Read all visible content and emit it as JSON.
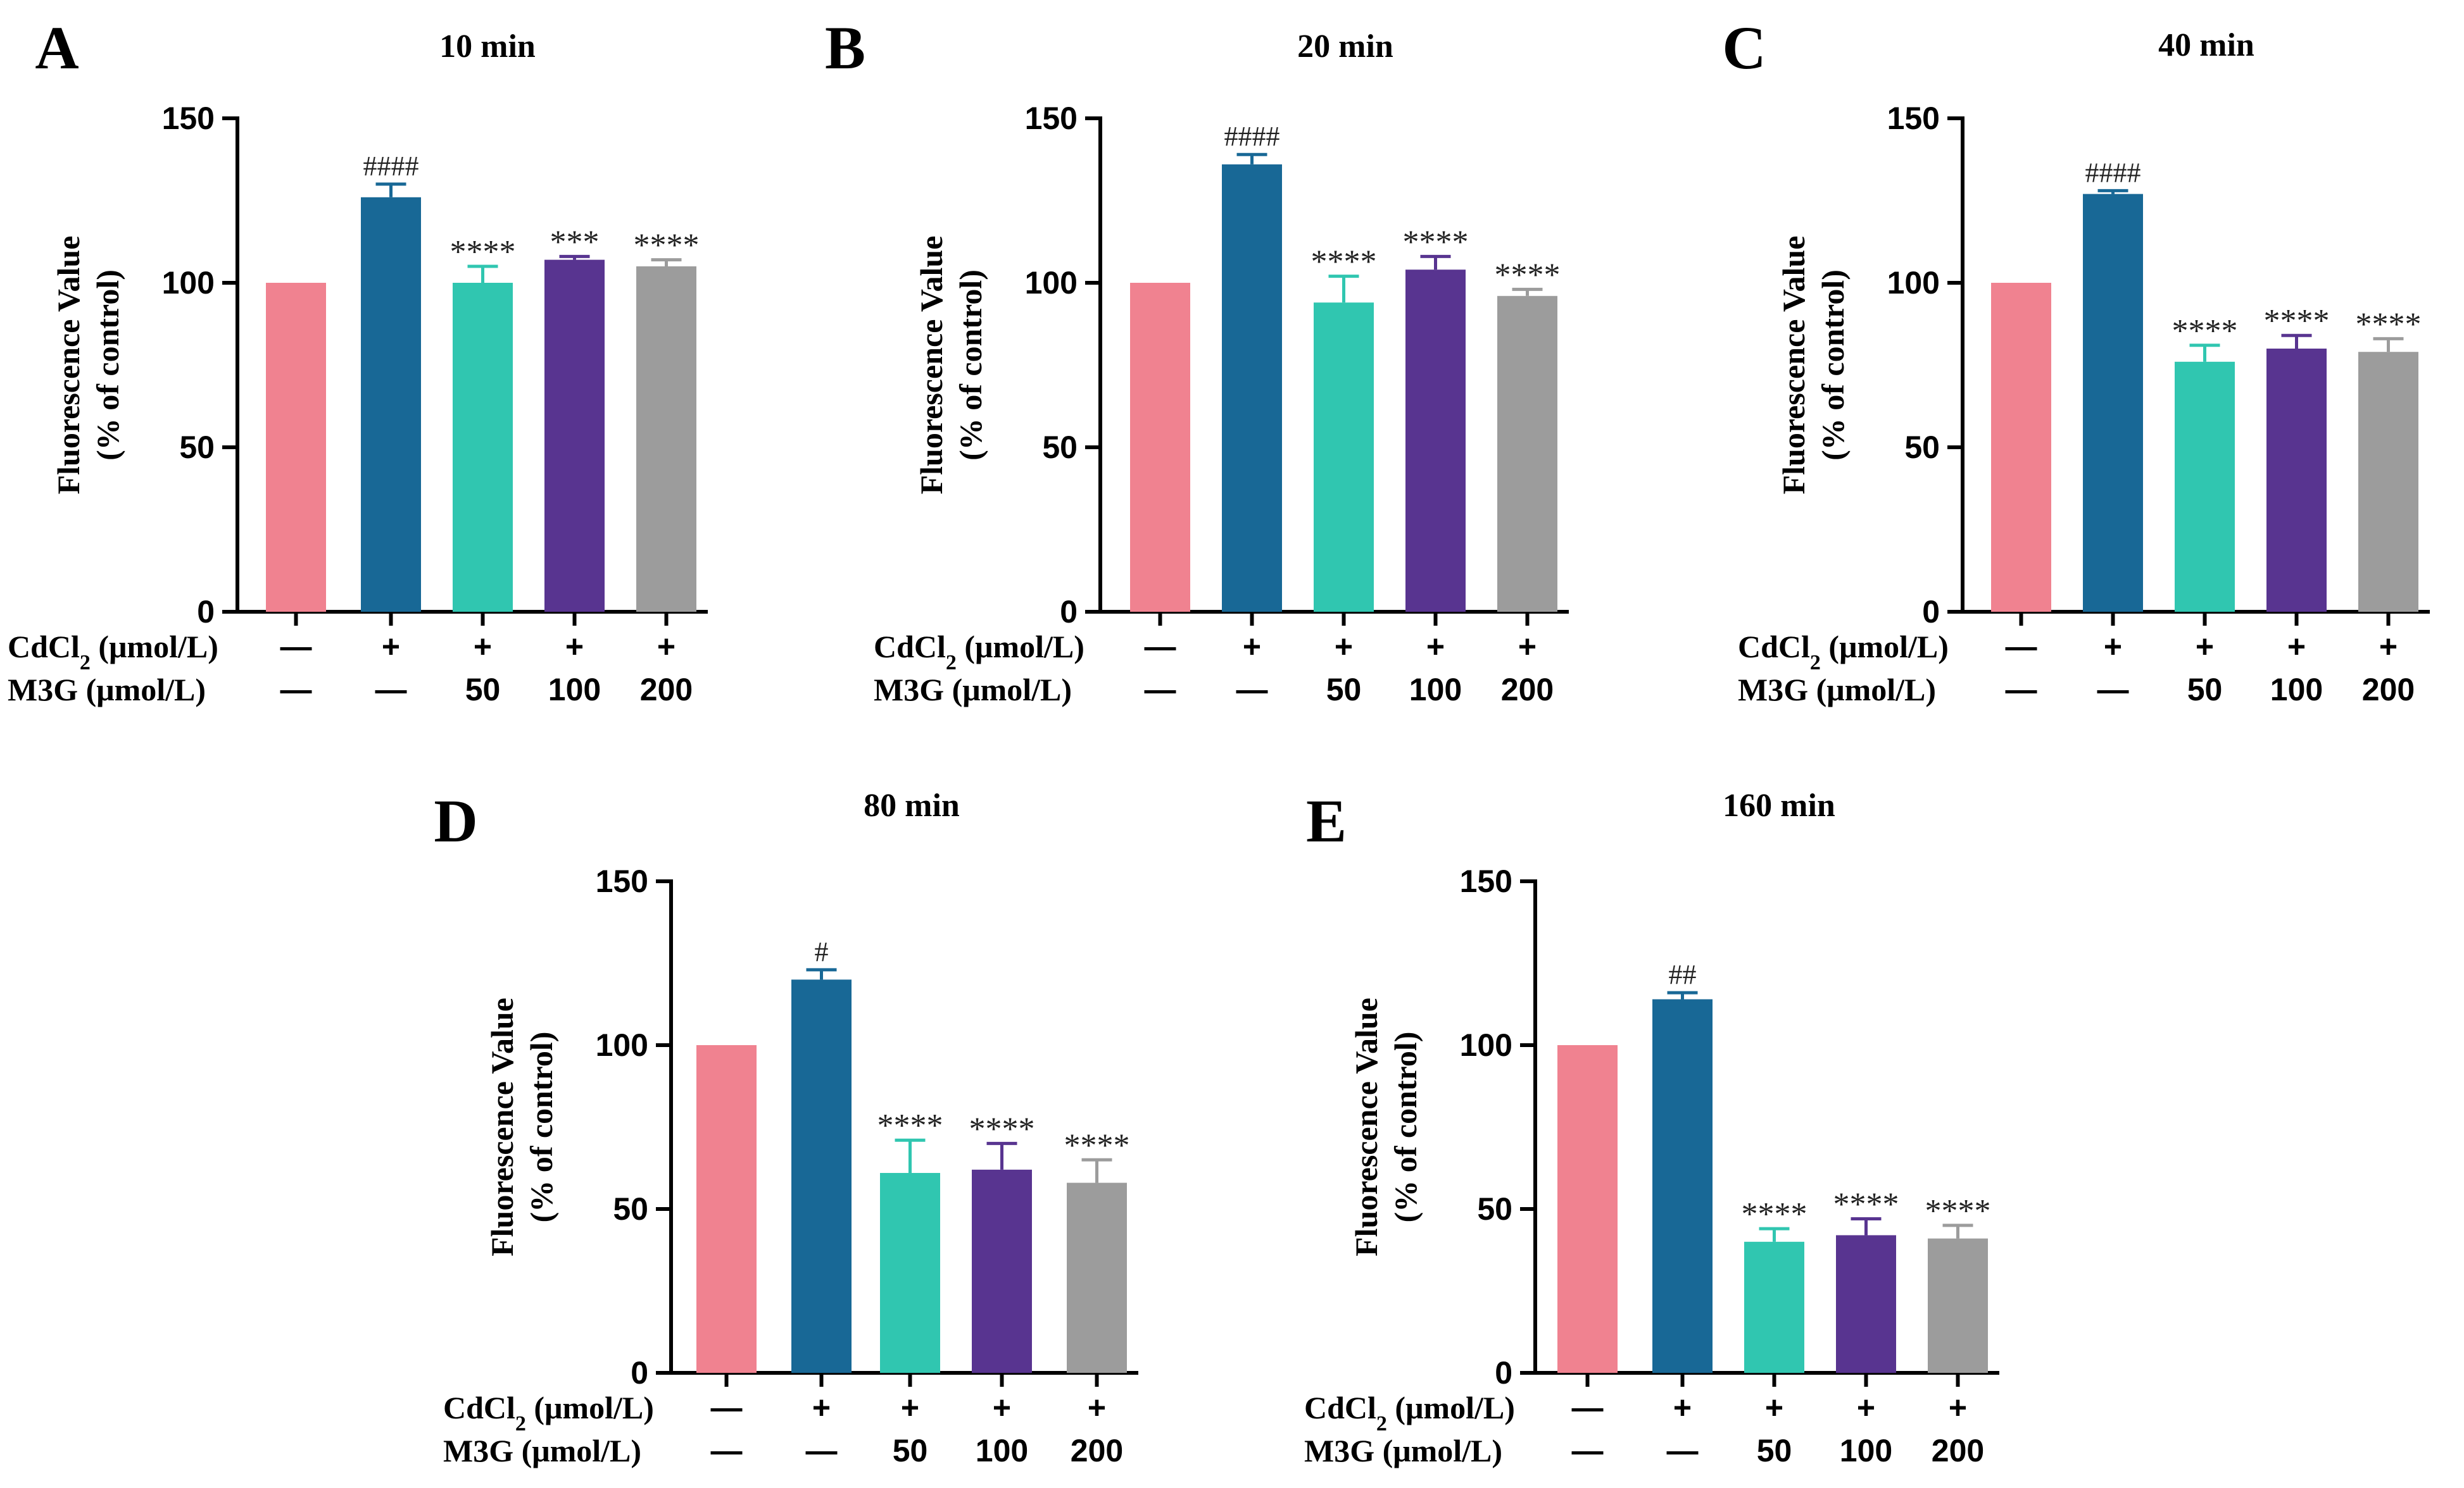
{
  "chart_data": [
    {
      "panel": "A",
      "title": "10 min",
      "type": "bar",
      "ylabel": [
        "Fluorescence Value",
        "(% of control)"
      ],
      "ylim": [
        0,
        150
      ],
      "yticks": [
        "0",
        "50",
        "100",
        "150"
      ],
      "categories": [
        "Control",
        "CdCl2",
        "CdCl2 + M3G 50",
        "CdCl2 + M3G 100",
        "CdCl2 + M3G 200"
      ],
      "values": [
        100,
        126,
        100,
        107,
        105
      ],
      "errors": [
        0,
        4,
        5,
        1,
        2
      ],
      "significance": [
        "",
        "####",
        "****",
        "***",
        "****"
      ],
      "colors": [
        "#F08290",
        "#186896",
        "#30C6B0",
        "#583490",
        "#9C9C9C"
      ],
      "row_labels": {
        "cdcl2": [
          "CdCl",
          "2",
          " (μmol/L)"
        ],
        "m3g": "M3G (μmol/L)"
      },
      "cdcl2_row": [
        "—",
        "+",
        "+",
        "+",
        "+"
      ],
      "m3g_row": [
        "—",
        "—",
        "50",
        "100",
        "200"
      ]
    },
    {
      "panel": "B",
      "title": "20 min",
      "type": "bar",
      "ylabel": [
        "Fluorescence Value",
        "(% of control)"
      ],
      "ylim": [
        0,
        150
      ],
      "yticks": [
        "0",
        "50",
        "100",
        "150"
      ],
      "categories": [
        "Control",
        "CdCl2",
        "CdCl2 + M3G 50",
        "CdCl2 + M3G 100",
        "CdCl2 + M3G 200"
      ],
      "values": [
        100,
        136,
        94,
        104,
        96
      ],
      "errors": [
        0,
        3,
        8,
        4,
        2
      ],
      "significance": [
        "",
        "####",
        "****",
        "****",
        "****"
      ],
      "colors": [
        "#F08290",
        "#186896",
        "#30C6B0",
        "#583490",
        "#9C9C9C"
      ],
      "row_labels": {
        "cdcl2": [
          "CdCl",
          "2",
          " (μmol/L)"
        ],
        "m3g": "M3G (μmol/L)"
      },
      "cdcl2_row": [
        "—",
        "+",
        "+",
        "+",
        "+"
      ],
      "m3g_row": [
        "—",
        "—",
        "50",
        "100",
        "200"
      ]
    },
    {
      "panel": "C",
      "title": "40 min",
      "type": "bar",
      "ylabel": [
        "Fluorescence Value",
        "(% of control)"
      ],
      "ylim": [
        0,
        150
      ],
      "yticks": [
        "0",
        "50",
        "100",
        "150"
      ],
      "categories": [
        "Control",
        "CdCl2",
        "CdCl2 + M3G 50",
        "CdCl2 + M3G 100",
        "CdCl2 + M3G 200"
      ],
      "values": [
        100,
        127,
        76,
        80,
        79
      ],
      "errors": [
        0,
        1,
        5,
        4,
        4
      ],
      "significance": [
        "",
        "####",
        "****",
        "****",
        "****"
      ],
      "colors": [
        "#F08290",
        "#186896",
        "#30C6B0",
        "#583490",
        "#9C9C9C"
      ],
      "row_labels": {
        "cdcl2": [
          "CdCl",
          "2",
          " (μmol/L)"
        ],
        "m3g": "M3G (μmol/L)"
      },
      "cdcl2_row": [
        "—",
        "+",
        "+",
        "+",
        "+"
      ],
      "m3g_row": [
        "—",
        "—",
        "50",
        "100",
        "200"
      ]
    },
    {
      "panel": "D",
      "title": "80 min",
      "type": "bar",
      "ylabel": [
        "Fluorescence Value",
        "(% of control)"
      ],
      "ylim": [
        0,
        150
      ],
      "yticks": [
        "0",
        "50",
        "100",
        "150"
      ],
      "categories": [
        "Control",
        "CdCl2",
        "CdCl2 + M3G 50",
        "CdCl2 + M3G 100",
        "CdCl2 + M3G 200"
      ],
      "values": [
        100,
        120,
        61,
        62,
        58
      ],
      "errors": [
        0,
        3,
        10,
        8,
        7
      ],
      "significance": [
        "",
        "#",
        "****",
        "****",
        "****"
      ],
      "colors": [
        "#F08290",
        "#186896",
        "#30C6B0",
        "#583490",
        "#9C9C9C"
      ],
      "row_labels": {
        "cdcl2": [
          "CdCl",
          "2",
          " (μmol/L)"
        ],
        "m3g": "M3G (μmol/L)"
      },
      "cdcl2_row": [
        "—",
        "+",
        "+",
        "+",
        "+"
      ],
      "m3g_row": [
        "—",
        "—",
        "50",
        "100",
        "200"
      ]
    },
    {
      "panel": "E",
      "title": "160 min",
      "type": "bar",
      "ylabel": [
        "Fluorescence Value",
        "(% of control)"
      ],
      "ylim": [
        0,
        150
      ],
      "yticks": [
        "0",
        "50",
        "100",
        "150"
      ],
      "categories": [
        "Control",
        "CdCl2",
        "CdCl2 + M3G 50",
        "CdCl2 + M3G 100",
        "CdCl2 + M3G 200"
      ],
      "values": [
        100,
        114,
        40,
        42,
        41
      ],
      "errors": [
        0,
        2,
        4,
        5,
        4
      ],
      "significance": [
        "",
        "##",
        "****",
        "****",
        "****"
      ],
      "colors": [
        "#F08290",
        "#186896",
        "#30C6B0",
        "#583490",
        "#9C9C9C"
      ],
      "row_labels": {
        "cdcl2": [
          "CdCl",
          "2",
          " (μmol/L)"
        ],
        "m3g": "M3G (μmol/L)"
      },
      "cdcl2_row": [
        "—",
        "+",
        "+",
        "+",
        "+"
      ],
      "m3g_row": [
        "—",
        "—",
        "50",
        "100",
        "200"
      ]
    }
  ]
}
